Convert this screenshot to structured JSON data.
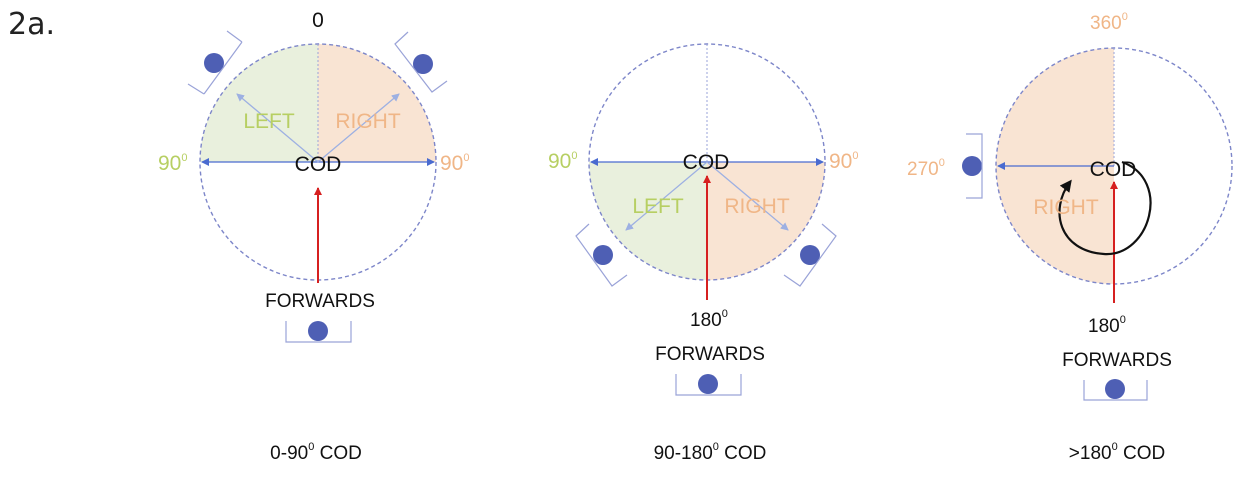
{
  "figure_label": "2a.",
  "colors": {
    "left_fill": "#e9f0dd",
    "right_fill": "#f9e4d3",
    "left_text": "#b7cf63",
    "right_text": "#f0b687",
    "circle_dash": "#7d86c9",
    "arrow_blue": "#4a6bd0",
    "arrow_light": "#9db0e2",
    "arrow_red": "#d62020",
    "person_dot": "#4e5fb4",
    "rotation_arrow": "#111111"
  },
  "panels": [
    {
      "caption_main": "0-90",
      "caption_sup": "0",
      "caption_tail": " COD",
      "center_label": "COD",
      "top_label": "0",
      "left_label": "LEFT",
      "right_label": "RIGHT",
      "left_angle": "90",
      "left_angle_sup": "0",
      "right_angle": "90",
      "right_angle_sup": "0",
      "forwards_label": "FORWARDS"
    },
    {
      "caption_main": "90-180",
      "caption_sup": "0",
      "caption_tail": " COD",
      "center_label": "COD",
      "left_label": "LEFT",
      "right_label": "RIGHT",
      "left_angle": "90",
      "left_angle_sup": "0",
      "right_angle": "90",
      "right_angle_sup": "0",
      "bottom_angle": "180",
      "bottom_angle_sup": "0",
      "forwards_label": "FORWARDS"
    },
    {
      "caption_main": ">180",
      "caption_sup": "0",
      "caption_tail": " COD",
      "center_label": "COD",
      "right_label": "RIGHT",
      "top_angle": "360",
      "top_angle_sup": "0",
      "left_angle": "270",
      "left_angle_sup": "0",
      "bottom_angle": "180",
      "bottom_angle_sup": "0",
      "forwards_label": "FORWARDS"
    }
  ]
}
